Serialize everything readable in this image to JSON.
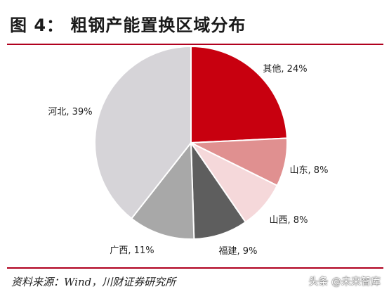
{
  "header": {
    "title": "图 4： 粗钢产能置换区域分布"
  },
  "chart_data": {
    "type": "pie",
    "title": "",
    "slices": [
      {
        "label": "其他",
        "value": 24,
        "display": "其他, 24%",
        "color": "#c8000f"
      },
      {
        "label": "山东",
        "value": 8,
        "display": "山东, 8%",
        "color": "#e09090"
      },
      {
        "label": "山西",
        "value": 8,
        "display": "山西, 8%",
        "color": "#f5d8da"
      },
      {
        "label": "福建",
        "value": 9,
        "display": "福建, 9%",
        "color": "#5e5e5e"
      },
      {
        "label": "广西",
        "value": 11,
        "display": "广西, 11%",
        "color": "#a8a8a8"
      },
      {
        "label": "河北",
        "value": 39,
        "display": "河北, 39%",
        "color": "#d6d4d8"
      }
    ],
    "start_angle_deg": 0,
    "direction": "clockwise"
  },
  "footer": {
    "source": "资料来源：Wind，川财证券研究所",
    "watermark": "头条 @未来智库"
  }
}
